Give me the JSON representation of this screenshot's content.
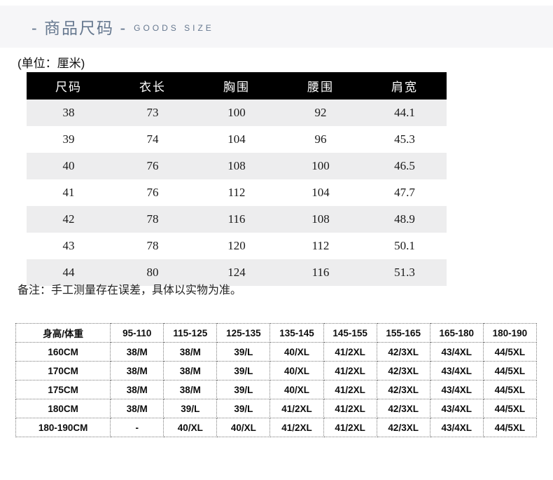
{
  "header": {
    "title": "- 商品尺码 -",
    "subtitle": "GOODS SIZE",
    "accent_color": "#66788f",
    "bar_bg": "#f6f6f8"
  },
  "unit_note": "(单位：厘米)",
  "size_table": {
    "header_bg": "#000000",
    "header_text_color": "#ffffff",
    "stripe_color": "#ededee",
    "headers": [
      "尺码",
      "衣长",
      "胸围",
      "腰围",
      "肩宽"
    ],
    "rows": [
      [
        "38",
        "73",
        "100",
        "92",
        "44.1"
      ],
      [
        "39",
        "74",
        "104",
        "96",
        "45.3"
      ],
      [
        "40",
        "76",
        "108",
        "100",
        "46.5"
      ],
      [
        "41",
        "76",
        "112",
        "104",
        "47.7"
      ],
      [
        "42",
        "78",
        "116",
        "108",
        "48.9"
      ],
      [
        "43",
        "78",
        "120",
        "112",
        "50.1"
      ],
      [
        "44",
        "80",
        "124",
        "116",
        "51.3"
      ]
    ]
  },
  "remark": "备注：手工测量存在误差，具体以实物为准。",
  "fit_table": {
    "headers": [
      "身高/体重",
      "95-110",
      "115-125",
      "125-135",
      "135-145",
      "145-155",
      "155-165",
      "165-180",
      "180-190"
    ],
    "rows": [
      [
        "160CM",
        "38/M",
        "38/M",
        "39/L",
        "40/XL",
        "41/2XL",
        "42/3XL",
        "43/4XL",
        "44/5XL"
      ],
      [
        "170CM",
        "38/M",
        "38/M",
        "39/L",
        "40/XL",
        "41/2XL",
        "42/3XL",
        "43/4XL",
        "44/5XL"
      ],
      [
        "175CM",
        "38/M",
        "38/M",
        "39/L",
        "40/XL",
        "41/2XL",
        "42/3XL",
        "43/4XL",
        "44/5XL"
      ],
      [
        "180CM",
        "38/M",
        "39/L",
        "39/L",
        "41/2XL",
        "41/2XL",
        "42/3XL",
        "43/4XL",
        "44/5XL"
      ],
      [
        "180-190CM",
        "-",
        "40/XL",
        "40/XL",
        "41/2XL",
        "41/2XL",
        "42/3XL",
        "43/4XL",
        "44/5XL"
      ]
    ]
  }
}
